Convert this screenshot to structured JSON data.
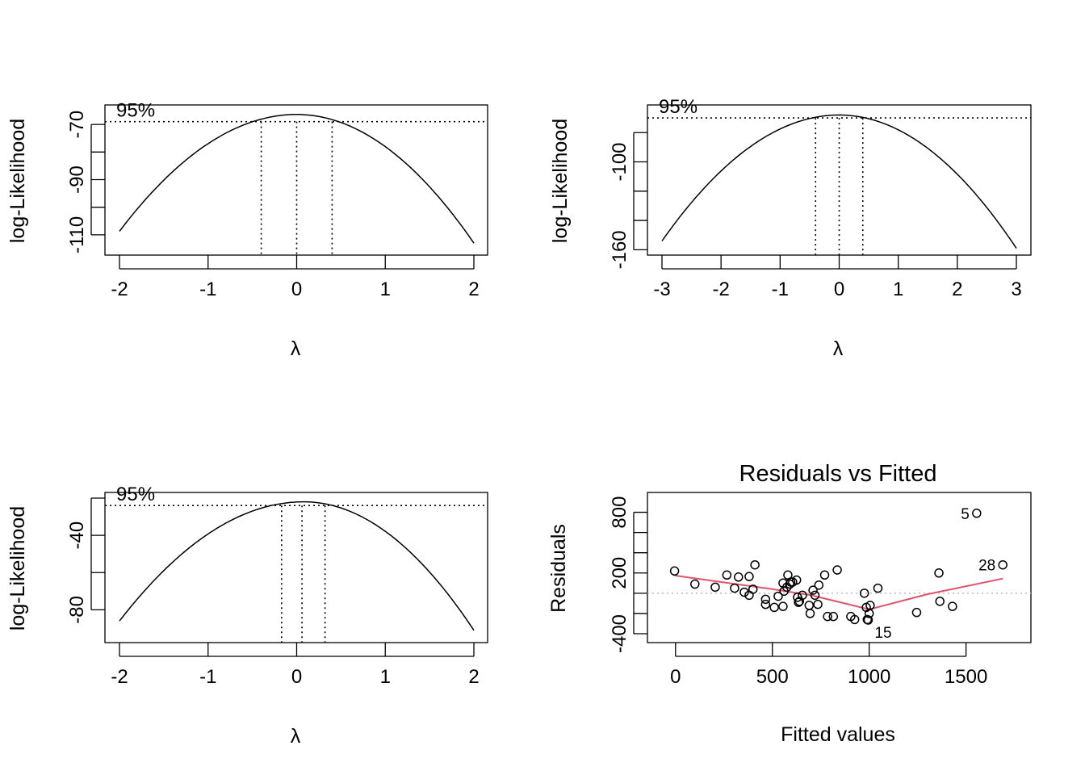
{
  "chart_data": [
    {
      "type": "line",
      "xlabel": "λ",
      "ylabel": "log-Likelihood",
      "xlim": [
        -2,
        2
      ],
      "ylim": [
        -115,
        -65
      ],
      "xticks": [
        "-2",
        "-1",
        "0",
        "1",
        "2"
      ],
      "yticks": [
        "-110",
        "-90",
        "-70"
      ],
      "curve": {
        "peak_lambda": 0.0,
        "peak_loglik": -66.4,
        "loglik_at_minus2": -108.7,
        "loglik_at_plus2": -113.0
      },
      "ci_level": "95%",
      "ci_line_y": -69.0,
      "ci_lambda": [
        -0.4,
        0.0,
        0.4
      ]
    },
    {
      "type": "line",
      "xlabel": "λ",
      "ylabel": "log-Likelihood",
      "xlim": [
        -3,
        3
      ],
      "ylim": [
        -162,
        -65
      ],
      "xticks": [
        "-3",
        "-2",
        "-1",
        "0",
        "1",
        "2",
        "3"
      ],
      "yticks": [
        "-160",
        "-100"
      ],
      "curve": {
        "peak_lambda": 0.0,
        "peak_loglik": -68.0,
        "loglik_at_minus3": -154.0,
        "loglik_at_plus3": -159.0
      },
      "ci_level": "95%",
      "ci_line_y": -70.0,
      "ci_lambda": [
        -0.4,
        0.0,
        0.4
      ]
    },
    {
      "type": "line",
      "xlabel": "λ",
      "ylabel": "log-Likelihood",
      "xlim": [
        -2,
        2
      ],
      "ylim": [
        -95,
        -20
      ],
      "xticks": [
        "-2",
        "-1",
        "0",
        "1",
        "2"
      ],
      "yticks": [
        "-80",
        "-40"
      ],
      "curve": {
        "peak_lambda": 0.08,
        "peak_loglik": -22.0,
        "loglik_at_minus2": -86.0,
        "loglik_at_plus2": -91.0
      },
      "ci_level": "95%",
      "ci_line_y": -24.0,
      "ci_lambda": [
        -0.17,
        0.06,
        0.32
      ]
    },
    {
      "type": "scatter",
      "title": "Residuals vs Fitted",
      "xlabel": "Fitted values",
      "ylabel": "Residuals",
      "xlim": [
        -70,
        1760
      ],
      "ylim": [
        -440,
        940
      ],
      "xticks": [
        "0",
        "500",
        "1000",
        "1500"
      ],
      "yticks": [
        "-400",
        "200",
        "800"
      ],
      "points": [
        [
          -5,
          220
        ],
        [
          100,
          90
        ],
        [
          205,
          60
        ],
        [
          265,
          180
        ],
        [
          305,
          50
        ],
        [
          325,
          160
        ],
        [
          355,
          10
        ],
        [
          380,
          -20
        ],
        [
          380,
          165
        ],
        [
          400,
          40
        ],
        [
          410,
          280
        ],
        [
          465,
          -60
        ],
        [
          465,
          -110
        ],
        [
          510,
          -140
        ],
        [
          530,
          -30
        ],
        [
          555,
          -130
        ],
        [
          555,
          100
        ],
        [
          560,
          20
        ],
        [
          575,
          60
        ],
        [
          580,
          180
        ],
        [
          590,
          90
        ],
        [
          595,
          110
        ],
        [
          605,
          110
        ],
        [
          625,
          130
        ],
        [
          630,
          -40
        ],
        [
          635,
          -90
        ],
        [
          640,
          -80
        ],
        [
          655,
          -20
        ],
        [
          690,
          -120
        ],
        [
          695,
          -200
        ],
        [
          710,
          30
        ],
        [
          720,
          -20
        ],
        [
          735,
          -110
        ],
        [
          740,
          80
        ],
        [
          770,
          180
        ],
        [
          785,
          -230
        ],
        [
          815,
          -230
        ],
        [
          835,
          230
        ],
        [
          905,
          -230
        ],
        [
          925,
          -260
        ],
        [
          975,
          0
        ],
        [
          985,
          -140
        ],
        [
          990,
          -260
        ],
        [
          1000,
          -200
        ],
        [
          1005,
          -120
        ],
        [
          1045,
          50
        ],
        [
          1245,
          -190
        ],
        [
          1360,
          200
        ],
        [
          1365,
          -80
        ],
        [
          1430,
          -130
        ]
      ],
      "labeled_points": [
        {
          "x": 1555,
          "y": 790,
          "label": "5"
        },
        {
          "x": 1690,
          "y": 280,
          "label": "28"
        },
        {
          "x": 995,
          "y": -265,
          "label": "15"
        }
      ],
      "smooth": [
        [
          -5,
          175
        ],
        [
          500,
          40
        ],
        [
          700,
          -20
        ],
        [
          1000,
          -160
        ],
        [
          1300,
          -10
        ],
        [
          1690,
          145
        ]
      ]
    }
  ]
}
